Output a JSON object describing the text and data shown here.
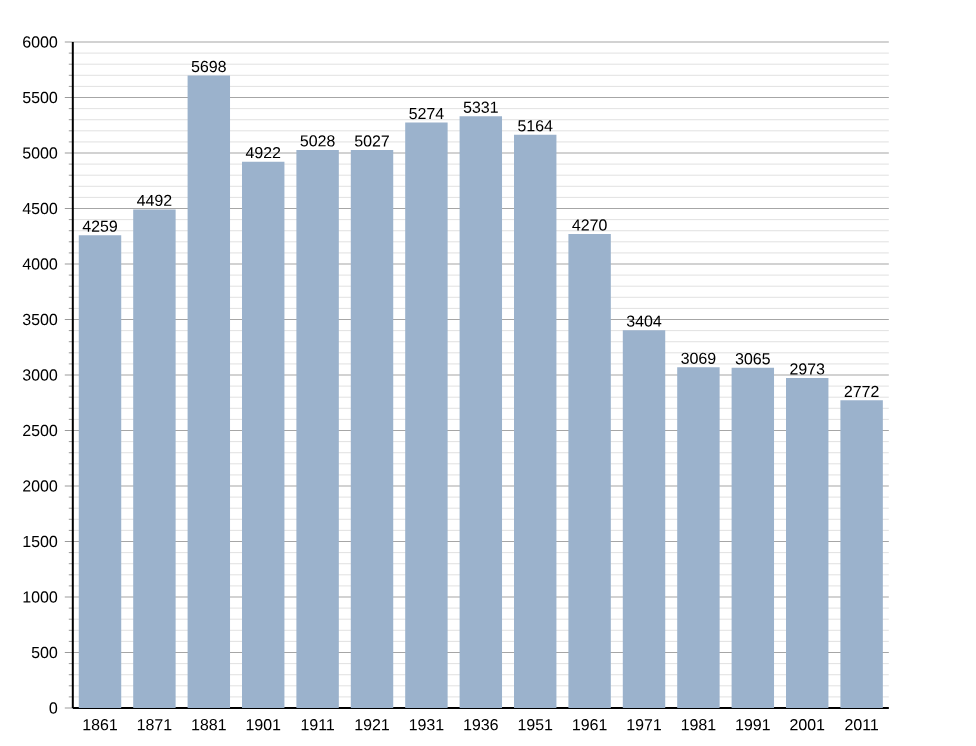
{
  "chart_data": {
    "type": "bar",
    "categories": [
      "1861",
      "1871",
      "1881",
      "1901",
      "1911",
      "1921",
      "1931",
      "1936",
      "1951",
      "1961",
      "1971",
      "1981",
      "1991",
      "2001",
      "2011"
    ],
    "values": [
      4259,
      4492,
      5698,
      4922,
      5028,
      5027,
      5274,
      5331,
      5164,
      4270,
      3404,
      3069,
      3065,
      2973,
      2772
    ],
    "color": "#9bb2cc",
    "ylim": [
      0,
      6000
    ],
    "yticks": [
      0,
      500,
      1000,
      1500,
      2000,
      2500,
      3000,
      3500,
      4000,
      4500,
      5000,
      5500,
      6000
    ],
    "grid": "y",
    "data_labels": true
  }
}
